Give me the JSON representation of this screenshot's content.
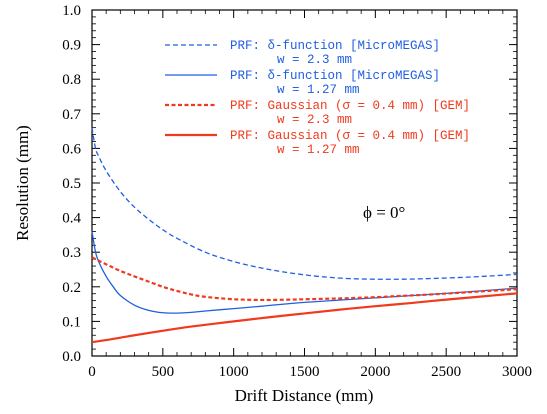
{
  "chart_data": {
    "type": "line",
    "xlabel": "Drift Distance (mm)",
    "ylabel": "Resolution (mm)",
    "xlim": [
      0,
      3000
    ],
    "ylim": [
      0,
      1.0
    ],
    "xticks": [
      0,
      500,
      1000,
      1500,
      2000,
      2500,
      3000
    ],
    "xtick_labels": [
      "0",
      "500",
      "1000",
      "1500",
      "2000",
      "2500",
      "3000"
    ],
    "yticks": [
      0,
      0.1,
      0.2,
      0.3,
      0.4,
      0.5,
      0.6,
      0.7,
      0.8,
      0.9,
      1.0
    ],
    "ytick_labels": [
      "0.0",
      "0.1",
      "0.2",
      "0.3",
      "0.4",
      "0.5",
      "0.6",
      "0.7",
      "0.8",
      "0.9",
      "1.0"
    ],
    "annotation": "ϕ = 0°",
    "legend_position": "top-right",
    "grid": false,
    "series": [
      {
        "name": "PRF: δ-function [MicroMEGAS]",
        "name_line2": "w = 2.3 mm",
        "color": "#1f5fe0",
        "style": "dashed",
        "x": [
          0,
          25,
          50,
          100,
          200,
          300,
          400,
          500,
          600,
          800,
          1000,
          1200,
          1400,
          1600,
          1800,
          2000,
          2200,
          2400,
          2600,
          2800,
          3000
        ],
        "y": [
          0.66,
          0.6,
          0.575,
          0.535,
          0.475,
          0.43,
          0.395,
          0.365,
          0.34,
          0.3,
          0.273,
          0.254,
          0.24,
          0.23,
          0.224,
          0.222,
          0.222,
          0.224,
          0.227,
          0.231,
          0.236
        ]
      },
      {
        "name": "PRF: δ-function [MicroMEGAS]",
        "name_line2": "w = 1.27 mm",
        "color": "#1f5fe0",
        "style": "solid",
        "x": [
          0,
          25,
          50,
          100,
          150,
          200,
          300,
          400,
          500,
          600,
          700,
          800,
          1000,
          1200,
          1500,
          2000,
          2500,
          3000
        ],
        "y": [
          0.36,
          0.3,
          0.27,
          0.23,
          0.2,
          0.175,
          0.147,
          0.132,
          0.125,
          0.124,
          0.126,
          0.13,
          0.137,
          0.144,
          0.155,
          0.168,
          0.181,
          0.196
        ]
      },
      {
        "name": "PRF: Gaussian (σ = 0.4 mm) [GEM]",
        "name_line2": "w = 2.3 mm",
        "color": "#f03a1e",
        "style": "dashed",
        "x": [
          0,
          100,
          200,
          300,
          400,
          500,
          600,
          700,
          800,
          1000,
          1200,
          1400,
          1600,
          1800,
          2000,
          2200,
          2400,
          2600,
          2800,
          3000
        ],
        "y": [
          0.285,
          0.265,
          0.246,
          0.23,
          0.215,
          0.2,
          0.188,
          0.178,
          0.171,
          0.164,
          0.162,
          0.163,
          0.165,
          0.167,
          0.17,
          0.174,
          0.178,
          0.183,
          0.188,
          0.193
        ]
      },
      {
        "name": "PRF: Gaussian (σ = 0.4 mm) [GEM]",
        "name_line2": "w = 1.27 mm",
        "color": "#f03a1e",
        "style": "solid",
        "x": [
          0,
          100,
          200,
          300,
          500,
          700,
          1000,
          1250,
          1500,
          1750,
          2000,
          2250,
          2500,
          2750,
          3000
        ],
        "y": [
          0.04,
          0.046,
          0.053,
          0.06,
          0.073,
          0.085,
          0.1,
          0.112,
          0.123,
          0.134,
          0.144,
          0.153,
          0.163,
          0.172,
          0.181
        ]
      }
    ]
  }
}
